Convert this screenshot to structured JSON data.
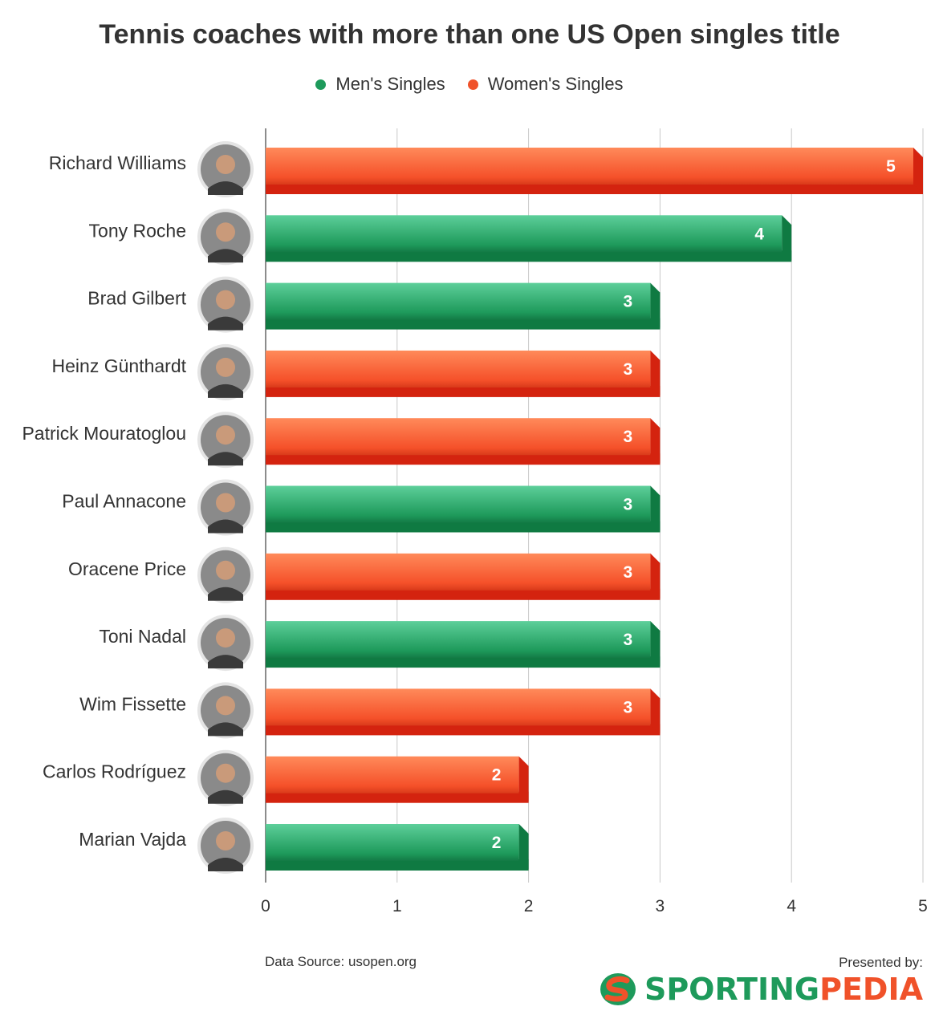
{
  "chart_data": {
    "type": "bar",
    "orientation": "horizontal",
    "title": "Tennis coaches with more than one US Open singles title",
    "legend": [
      {
        "name": "Men's Singles",
        "color": "#1e9a5b"
      },
      {
        "name": "Women's Singles",
        "color": "#f0522a"
      }
    ],
    "legend_position": "top-center",
    "categories": [
      "Richard Williams",
      "Tony Roche",
      "Brad Gilbert",
      "Heinz Günthardt",
      "Patrick Mouratoglou",
      "Paul Annacone",
      "Oracene Price",
      "Toni Nadal",
      "Wim Fissette",
      "Carlos Rodríguez",
      "Marian Vajda"
    ],
    "values": [
      5,
      4,
      3,
      3,
      3,
      3,
      3,
      3,
      3,
      2,
      2
    ],
    "series_of_bar": [
      "Women's Singles",
      "Men's Singles",
      "Men's Singles",
      "Women's Singles",
      "Women's Singles",
      "Men's Singles",
      "Women's Singles",
      "Men's Singles",
      "Women's Singles",
      "Women's Singles",
      "Men's Singles"
    ],
    "xlim": [
      0,
      5
    ],
    "xticks": [
      "0",
      "1",
      "2",
      "3",
      "4",
      "5"
    ],
    "grid": "vertical"
  },
  "footer": {
    "source": "Data Source: usopen.org",
    "presented_by": "Presented by:",
    "brand_part1": "SPORTING",
    "brand_part2": "PEDIA"
  }
}
